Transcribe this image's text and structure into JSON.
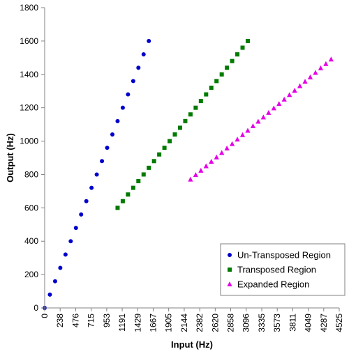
{
  "chart_data": {
    "type": "scatter",
    "title": "",
    "xlabel": "Input (Hz)",
    "ylabel": "Output (Hz)",
    "xlim": [
      0,
      4525
    ],
    "ylim": [
      0,
      1800
    ],
    "x_ticks": [
      "0",
      "238",
      "476",
      "715",
      "953",
      "1191",
      "1429",
      "1667",
      "1905",
      "2144",
      "2382",
      "2620",
      "2858",
      "3096",
      "3335",
      "3573",
      "3811",
      "4049",
      "4287",
      "4525"
    ],
    "x_tick_values": [
      0,
      238,
      476,
      715,
      953,
      1191,
      1429,
      1667,
      1905,
      2144,
      2382,
      2620,
      2858,
      3096,
      3335,
      3573,
      3811,
      4049,
      4287,
      4525
    ],
    "y_ticks": [
      "0",
      "200",
      "400",
      "600",
      "800",
      "1000",
      "1200",
      "1400",
      "1600",
      "1800"
    ],
    "y_tick_values": [
      0,
      200,
      400,
      600,
      800,
      1000,
      1200,
      1400,
      1600,
      1800
    ],
    "grid": false,
    "legend_position": "bottom-right",
    "series": [
      {
        "name": "Un-Transposed Region",
        "marker": "circle",
        "color": "#0000cc",
        "x": [
          0,
          80,
          160,
          240,
          320,
          400,
          480,
          560,
          640,
          720,
          800,
          880,
          960,
          1040,
          1120,
          1200,
          1280,
          1360,
          1440,
          1520,
          1600
        ],
        "y": [
          0,
          80,
          160,
          240,
          320,
          400,
          480,
          560,
          640,
          720,
          800,
          880,
          960,
          1040,
          1120,
          1200,
          1280,
          1360,
          1440,
          1520,
          1600
        ]
      },
      {
        "name": "Transposed Region",
        "marker": "square",
        "color": "#007a00",
        "x": [
          1120,
          1200,
          1280,
          1360,
          1440,
          1520,
          1600,
          1680,
          1760,
          1840,
          1920,
          2000,
          2080,
          2160,
          2240,
          2320,
          2400,
          2480,
          2560,
          2640,
          2720,
          2800,
          2880,
          2960,
          3040,
          3120
        ],
        "y": [
          600,
          640,
          680,
          720,
          760,
          800,
          840,
          880,
          920,
          960,
          1000,
          1040,
          1080,
          1120,
          1160,
          1200,
          1240,
          1280,
          1320,
          1360,
          1400,
          1440,
          1480,
          1520,
          1560,
          1600
        ]
      },
      {
        "name": "Expanded Region",
        "marker": "triangle",
        "color": "#e600e6",
        "x": [
          2240,
          2320,
          2400,
          2480,
          2560,
          2640,
          2720,
          2800,
          2880,
          2960,
          3040,
          3120,
          3200,
          3280,
          3360,
          3440,
          3520,
          3600,
          3680,
          3760,
          3840,
          3920,
          4000,
          4080,
          4160,
          4240,
          4320,
          4400
        ],
        "y": [
          770,
          797,
          823,
          850,
          877,
          903,
          930,
          957,
          983,
          1010,
          1037,
          1063,
          1090,
          1117,
          1143,
          1170,
          1197,
          1223,
          1250,
          1277,
          1303,
          1330,
          1357,
          1383,
          1410,
          1437,
          1463,
          1490
        ]
      }
    ]
  }
}
